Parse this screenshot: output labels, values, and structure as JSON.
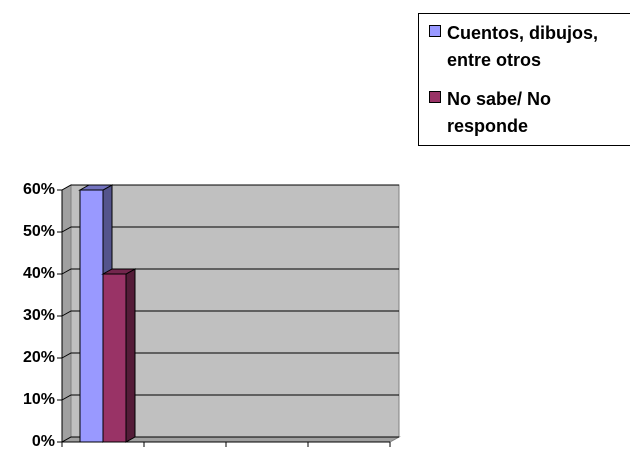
{
  "chart_data": {
    "type": "bar3d",
    "categories": [
      null,
      null,
      null,
      null
    ],
    "series": [
      {
        "name": "Cuentos, dibujos, entre otros",
        "color": "#9999ff",
        "values": [
          60,
          null,
          null,
          null
        ]
      },
      {
        "name": "No sabe/ No responde",
        "color": "#993366",
        "values": [
          40,
          null,
          null,
          null
        ]
      }
    ],
    "ylim": [
      0,
      60
    ],
    "yticks": [
      {
        "value": 0,
        "label": "0%"
      },
      {
        "value": 10,
        "label": "10%"
      },
      {
        "value": 20,
        "label": "20%"
      },
      {
        "value": 30,
        "label": "30%"
      },
      {
        "value": 40,
        "label": "40%"
      },
      {
        "value": 50,
        "label": "50%"
      },
      {
        "value": 60,
        "label": "60%"
      }
    ],
    "grid": true,
    "legend": "top-right"
  }
}
